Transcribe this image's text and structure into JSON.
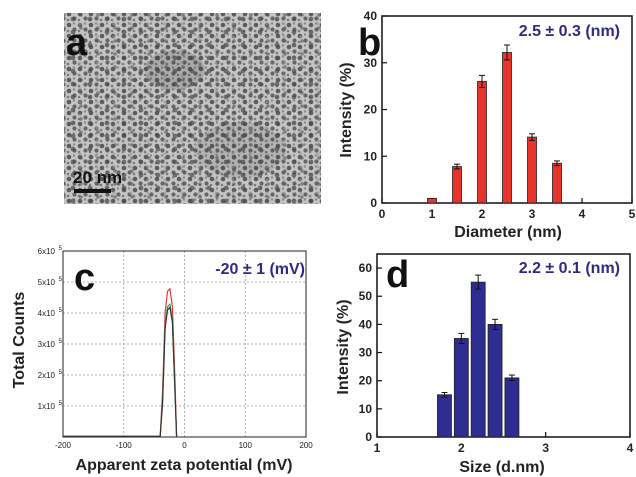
{
  "panels": {
    "a": {
      "letter": "a",
      "scalebar": "20 nm"
    },
    "b": {
      "letter": "b"
    },
    "c": {
      "letter": "c"
    },
    "d": {
      "letter": "d"
    }
  },
  "colors": {
    "bar_b": "#e8352c",
    "bar_d": "#2e2c91",
    "annotation": "#2f2a85",
    "curve_red": "#e23b3b",
    "curve_green": "#3aa35a",
    "curve_black": "#333333"
  },
  "chart_data": [
    {
      "panel": "b",
      "type": "bar",
      "annotation": "2.5 ± 0.3 (nm)",
      "xlabel": "Diameter (nm)",
      "ylabel": "Intensity (%)",
      "xlim": [
        0,
        5
      ],
      "ylim": [
        0,
        40
      ],
      "xticks": [
        "0",
        "1",
        "2",
        "3",
        "4",
        "5"
      ],
      "yticks": [
        "0",
        "10",
        "20",
        "30",
        "40"
      ],
      "x": [
        1.0,
        1.5,
        2.0,
        2.5,
        3.0,
        3.5
      ],
      "values": [
        1.0,
        7.8,
        26.0,
        32.2,
        14.1,
        8.5
      ],
      "errors": [
        0.0,
        0.5,
        1.3,
        1.6,
        0.7,
        0.5
      ]
    },
    {
      "panel": "c",
      "type": "line",
      "annotation": "-20 ± 1 (mV)",
      "xlabel": "Apparent zeta potential (mV)",
      "ylabel": "Total Counts",
      "xlim": [
        -200,
        200
      ],
      "ylim": [
        0,
        600000
      ],
      "xticks": [
        "-200",
        "-100",
        "0",
        "100",
        "200"
      ],
      "yticks_mantissa": [
        "1x10",
        "2x10",
        "3x10",
        "4x10",
        "5x10",
        "6x10"
      ],
      "yticks_exp": "5",
      "grid": true,
      "series": [
        {
          "x": [
            -200,
            -40,
            -36,
            -32,
            -28,
            -24,
            -20,
            -16,
            -13
          ],
          "values": [
            2000,
            2000,
            150000,
            400000,
            470000,
            478000,
            420000,
            200000,
            0
          ]
        },
        {
          "x": [
            -200,
            -40,
            -36,
            -32,
            -28,
            -24,
            -20,
            -16,
            -13
          ],
          "values": [
            2000,
            2000,
            120000,
            360000,
            420000,
            428000,
            380000,
            170000,
            0
          ]
        },
        {
          "x": [
            -200,
            -40,
            -36,
            -32,
            -28,
            -24,
            -20,
            -16,
            -13
          ],
          "values": [
            2000,
            2000,
            110000,
            350000,
            410000,
            418000,
            370000,
            160000,
            0
          ]
        }
      ]
    },
    {
      "panel": "d",
      "type": "bar",
      "annotation": "2.2 ± 0.1 (nm)",
      "xlabel": "Size (d.nm)",
      "ylabel": "Intensity (%)",
      "xlim": [
        1,
        4
      ],
      "ylim": [
        0,
        65
      ],
      "xticks": [
        "1",
        "2",
        "3",
        "4"
      ],
      "yticks": [
        "0",
        "10",
        "20",
        "30",
        "40",
        "50",
        "60"
      ],
      "x": [
        1.8,
        2.0,
        2.2,
        2.4,
        2.6
      ],
      "values": [
        15,
        35,
        55,
        40,
        21
      ],
      "errors": [
        0.8,
        1.8,
        2.5,
        1.8,
        1.0
      ]
    }
  ]
}
